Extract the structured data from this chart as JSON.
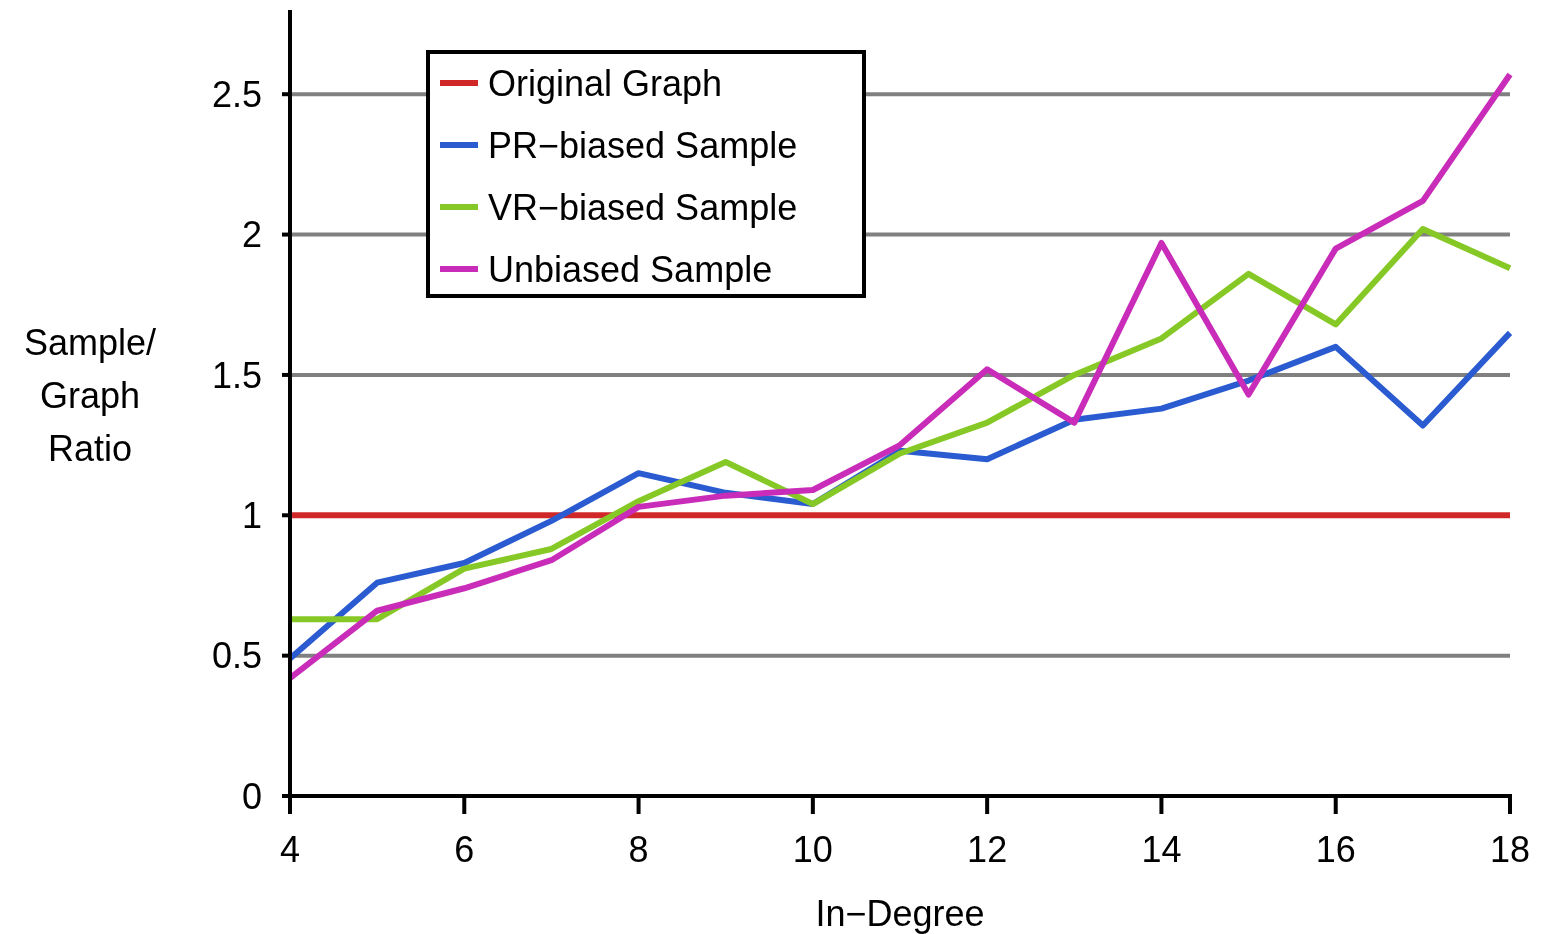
{
  "chart_data": {
    "type": "line",
    "xlabel": "In−Degree",
    "ylabel": "Sample/ Graph Ratio",
    "x": [
      4,
      5,
      6,
      7,
      8,
      9,
      10,
      11,
      12,
      13,
      14,
      15,
      16,
      17,
      18
    ],
    "series": [
      {
        "name": "Original Graph",
        "color": "#d02828",
        "values": [
          1,
          1,
          1,
          1,
          1,
          1,
          1,
          1,
          1,
          1,
          1,
          1,
          1,
          1,
          1
        ]
      },
      {
        "name": "PR−biased Sample",
        "color": "#2a5bd0",
        "values": [
          0.49,
          0.76,
          0.83,
          0.98,
          1.15,
          1.08,
          1.04,
          1.23,
          1.2,
          1.34,
          1.38,
          1.48,
          1.6,
          1.32,
          1.65
        ]
      },
      {
        "name": "VR−biased Sample",
        "color": "#86c926",
        "values": [
          0.63,
          0.63,
          0.81,
          0.88,
          1.05,
          1.19,
          1.04,
          1.22,
          1.33,
          1.5,
          1.63,
          1.86,
          1.68,
          2.02,
          1.88
        ]
      },
      {
        "name": "Unbiased Sample",
        "color": "#c82cb8",
        "values": [
          0.42,
          0.66,
          0.74,
          0.84,
          1.03,
          1.07,
          1.09,
          1.25,
          1.52,
          1.33,
          1.97,
          1.43,
          1.95,
          2.12,
          2.57
        ]
      }
    ],
    "xlim": [
      4,
      18
    ],
    "xticks": [
      4,
      6,
      8,
      10,
      12,
      14,
      16,
      18
    ],
    "ylim": [
      0,
      2.8
    ],
    "yticks": [
      0,
      0.5,
      1,
      1.5,
      2,
      2.5
    ],
    "grid": "y",
    "legend": "top left",
    "marker": "none",
    "line_style": "solid"
  }
}
